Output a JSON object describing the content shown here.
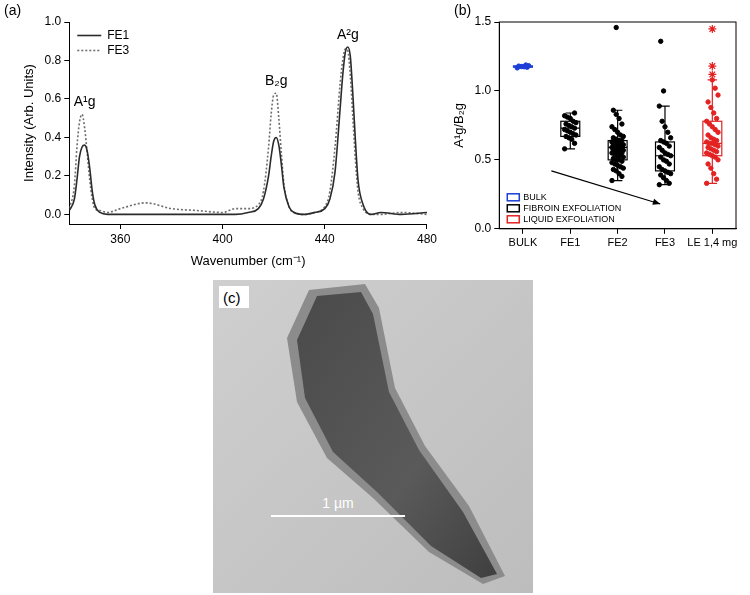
{
  "chart_data": [
    {
      "type": "line",
      "title": "(a)",
      "x_label": "Wavenumber (cm⁻¹)",
      "y_label": "Intensity (Arb. Units)",
      "x": [
        340,
        342,
        343,
        344,
        345,
        346,
        347,
        348,
        349,
        350,
        352,
        355,
        360,
        370,
        380,
        390,
        400,
        405,
        410,
        414,
        416,
        418,
        419,
        420,
        421,
        422,
        423,
        424,
        426,
        428,
        432,
        436,
        440,
        442,
        444,
        446,
        447,
        448,
        449,
        450,
        451,
        452,
        453,
        455,
        458,
        462,
        470,
        480
      ],
      "series": [
        {
          "name": "FE1",
          "color": "#2b2b2b",
          "line_style": "solid",
          "values": [
            0.02,
            0.08,
            0.18,
            0.3,
            0.35,
            0.36,
            0.33,
            0.24,
            0.12,
            0.05,
            0.01,
            0.0,
            0.0,
            0.0,
            0.0,
            0.0,
            0.0,
            0.0,
            0.01,
            0.03,
            0.08,
            0.2,
            0.3,
            0.38,
            0.4,
            0.36,
            0.26,
            0.14,
            0.04,
            0.01,
            0.0,
            0.01,
            0.03,
            0.08,
            0.22,
            0.55,
            0.72,
            0.84,
            0.87,
            0.82,
            0.62,
            0.38,
            0.18,
            0.05,
            0.0,
            0.01,
            0.0,
            0.01
          ]
        },
        {
          "name": "FE3",
          "color": "#6e6e6e",
          "line_style": "dotted",
          "values": [
            0.03,
            0.15,
            0.35,
            0.48,
            0.52,
            0.45,
            0.32,
            0.18,
            0.08,
            0.03,
            0.02,
            0.01,
            0.03,
            0.06,
            0.03,
            0.02,
            0.01,
            0.03,
            0.03,
            0.05,
            0.12,
            0.35,
            0.52,
            0.62,
            0.63,
            0.5,
            0.32,
            0.16,
            0.04,
            0.01,
            0.0,
            0.01,
            0.04,
            0.12,
            0.35,
            0.68,
            0.8,
            0.86,
            0.85,
            0.72,
            0.5,
            0.28,
            0.12,
            0.03,
            0.0,
            0.0,
            0.01,
            0.0
          ]
        }
      ],
      "xlim": [
        340,
        480
      ],
      "xticks": [
        360,
        400,
        440,
        480
      ],
      "ylim": [
        -0.05,
        1.0
      ],
      "yticks": [
        {
          "value": 0,
          "label": "0.0"
        },
        0.2,
        0.4,
        0.6,
        0.8,
        {
          "value": 1,
          "label": "1.0"
        }
      ],
      "grid": false,
      "legend": "upper left",
      "annotations": [
        {
          "text": "A¹g",
          "peak": 346
        },
        {
          "text": "B₂g",
          "peak": 421
        },
        {
          "text": "A²g",
          "peak": 449
        }
      ]
    },
    {
      "type": "box",
      "title": "(b)",
      "y_label": "A¹g/B₂g",
      "categories": [
        "BULK",
        "FE1",
        "FE2",
        "FE3",
        "LE 1,4 mg"
      ],
      "series": [
        {
          "name": "BULK",
          "color": "#1c3fd6"
        },
        {
          "name": "FIBROIN EXFOLIATION",
          "color": "#000000"
        },
        {
          "name": "LIQUID EXFOLIATION",
          "color": "#e32222"
        }
      ],
      "boxes": [
        {
          "category": "BULK",
          "series": "BULK",
          "min": 1.165,
          "q1": 1.172,
          "median": 1.177,
          "q3": 1.182,
          "max": 1.19,
          "points": [
            1.167,
            1.172,
            1.175,
            1.177,
            1.18,
            1.183,
            1.188
          ]
        },
        {
          "category": "FE1",
          "series": "FIBROIN EXFOLIATION",
          "min": 0.58,
          "q1": 0.67,
          "median": 0.73,
          "q3": 0.78,
          "max": 0.84,
          "points": [
            0.58,
            0.62,
            0.65,
            0.66,
            0.67,
            0.68,
            0.69,
            0.7,
            0.71,
            0.72,
            0.73,
            0.74,
            0.75,
            0.76,
            0.77,
            0.78,
            0.8,
            0.81,
            0.82,
            0.84
          ]
        },
        {
          "category": "FE2",
          "series": "FIBROIN EXFOLIATION",
          "min": 0.35,
          "q1": 0.5,
          "median": 0.59,
          "q3": 0.64,
          "max": 0.86,
          "points": [
            0.35,
            0.38,
            0.4,
            0.42,
            0.43,
            0.44,
            0.45,
            0.46,
            0.47,
            0.48,
            0.49,
            0.5,
            0.5,
            0.51,
            0.52,
            0.53,
            0.53,
            0.54,
            0.55,
            0.55,
            0.56,
            0.56,
            0.57,
            0.57,
            0.58,
            0.58,
            0.59,
            0.59,
            0.59,
            0.6,
            0.6,
            0.61,
            0.61,
            0.62,
            0.62,
            0.63,
            0.63,
            0.64,
            0.64,
            0.65,
            0.66,
            0.67,
            0.68,
            0.7,
            0.72,
            0.74,
            0.76,
            0.8,
            0.83,
            0.86
          ],
          "outliers": {
            "marker": "circle",
            "values": [
              1.46
            ]
          }
        },
        {
          "category": "FE3",
          "series": "FIBROIN EXFOLIATION",
          "min": 0.32,
          "q1": 0.42,
          "median": 0.53,
          "q3": 0.63,
          "max": 0.89,
          "points": [
            0.32,
            0.33,
            0.35,
            0.37,
            0.39,
            0.4,
            0.41,
            0.42,
            0.43,
            0.45,
            0.47,
            0.49,
            0.5,
            0.52,
            0.53,
            0.54,
            0.55,
            0.57,
            0.59,
            0.6,
            0.62,
            0.63,
            0.64,
            0.66,
            0.7,
            0.74,
            0.78,
            0.89
          ],
          "outliers": {
            "marker": "circle",
            "values": [
              1.0,
              1.36
            ]
          }
        },
        {
          "category": "LE 1,4 mg",
          "series": "LIQUID EXFOLIATION",
          "min": 0.33,
          "q1": 0.53,
          "median": 0.62,
          "q3": 0.78,
          "max": 1.08,
          "points": [
            0.33,
            0.36,
            0.4,
            0.44,
            0.47,
            0.5,
            0.52,
            0.53,
            0.54,
            0.55,
            0.56,
            0.57,
            0.58,
            0.59,
            0.6,
            0.61,
            0.62,
            0.62,
            0.63,
            0.64,
            0.65,
            0.66,
            0.68,
            0.7,
            0.72,
            0.74,
            0.76,
            0.78,
            0.8,
            0.84,
            0.88,
            0.92,
            0.97,
            1.02,
            1.08
          ],
          "outliers": {
            "marker": "star",
            "values": [
              1.12,
              1.18,
              1.45
            ]
          }
        }
      ],
      "ylim": [
        0,
        1.5
      ],
      "yticks": [
        {
          "value": 0,
          "label": "0.0"
        },
        0.5,
        {
          "value": 1,
          "label": "1.0"
        },
        1.5
      ],
      "grid": false,
      "legend": "lower left"
    }
  ],
  "image_panel": {
    "label": "(c)",
    "scale_bar": "1 µm"
  }
}
